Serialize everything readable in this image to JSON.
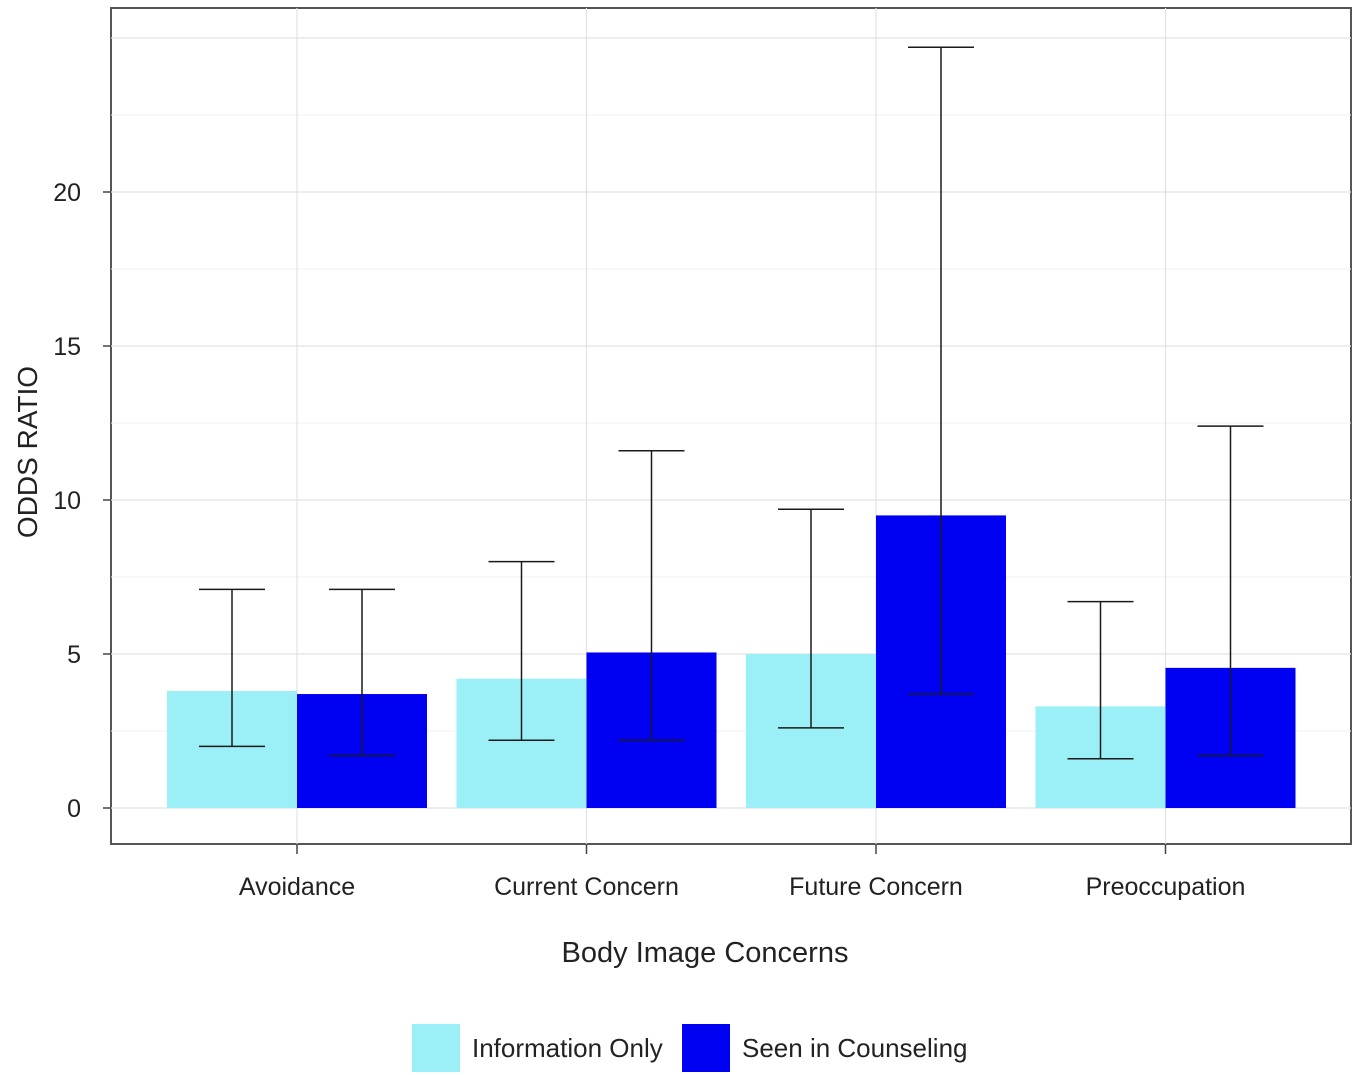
{
  "chart_data": {
    "type": "bar",
    "title": "",
    "xlabel": "Body Image Concerns",
    "ylabel": "ODDS RATIO",
    "ylim": [
      -1.2,
      26
    ],
    "yticks": [
      0,
      5,
      10,
      15,
      20
    ],
    "grid": true,
    "legend_position": "bottom",
    "categories": [
      "Avoidance",
      "Current Concern",
      "Future Concern",
      "Preoccupation"
    ],
    "series": [
      {
        "name": "Information Only",
        "color": "#9BF0F7",
        "values": [
          3.8,
          4.2,
          5.0,
          3.3
        ],
        "ci_low": [
          2.0,
          2.2,
          2.6,
          1.6
        ],
        "ci_high": [
          7.1,
          8.0,
          9.7,
          6.7
        ]
      },
      {
        "name": "Seen in Counseling",
        "color": "#0000F2",
        "values": [
          3.7,
          5.05,
          9.5,
          4.55
        ],
        "ci_low": [
          1.7,
          2.2,
          3.7,
          1.7
        ],
        "ci_high": [
          7.1,
          11.6,
          24.7,
          12.4
        ]
      }
    ]
  }
}
